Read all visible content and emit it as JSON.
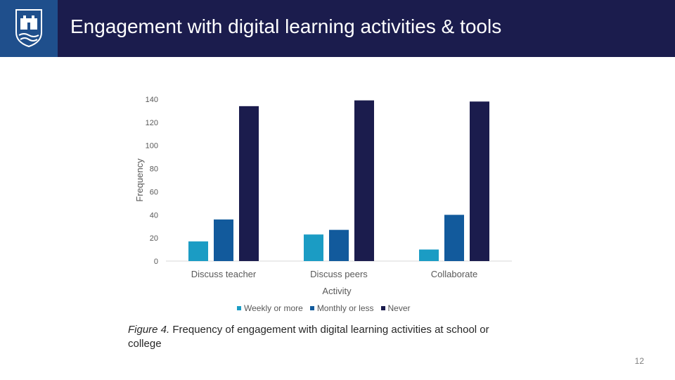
{
  "slide": {
    "title": "Engagement with digital learning activities & tools",
    "page_number": "12",
    "caption_label": "Figure 4.",
    "caption_text": " Frequency of engagement with digital learning activities at school or college"
  },
  "colors": {
    "header": "#1b1c4d",
    "logo_bg": "#1f4f8c"
  },
  "chart_data": {
    "type": "bar",
    "categories": [
      "Discuss teacher",
      "Discuss peers",
      "Collaborate"
    ],
    "series": [
      {
        "name": "Weekly or more",
        "color": "#1b9cc4",
        "values": [
          17,
          23,
          10
        ]
      },
      {
        "name": "Monthly or less",
        "color": "#125a9c",
        "values": [
          36,
          27,
          40
        ]
      },
      {
        "name": "Never",
        "color": "#1b1c4d",
        "values": [
          134,
          139,
          138
        ]
      }
    ],
    "xlabel": "Activity",
    "ylabel": "Frequency",
    "ylim": [
      0,
      140
    ],
    "yticks": [
      0,
      20,
      40,
      60,
      80,
      100,
      120,
      140
    ],
    "grid": false,
    "legend_position": "bottom"
  }
}
